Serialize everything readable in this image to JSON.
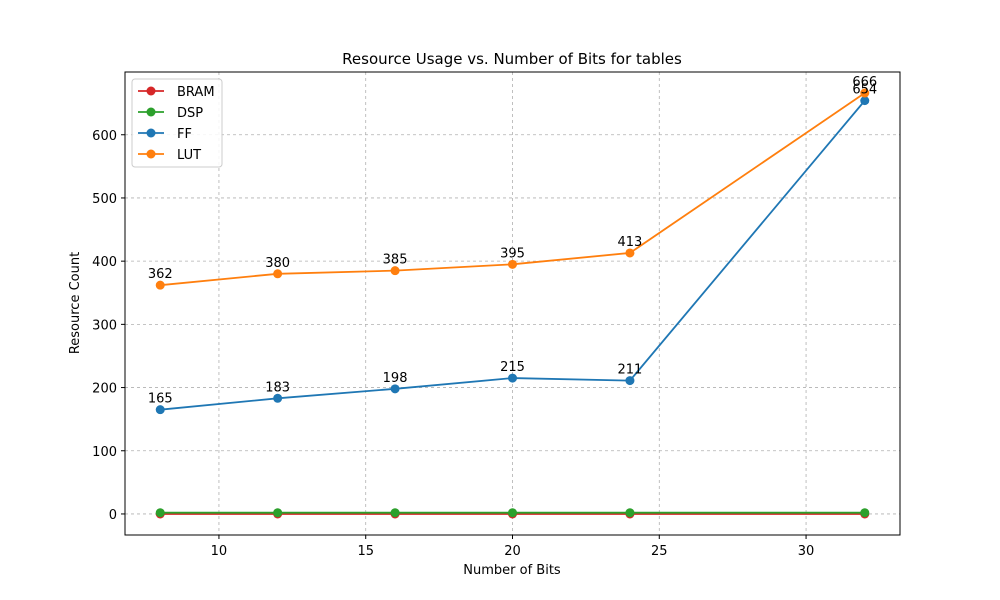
{
  "chart_data": {
    "type": "line",
    "title": "Resource Usage vs. Number of Bits for tables",
    "xlabel": "Number of Bits",
    "ylabel": "Resource Count",
    "x": [
      8,
      12,
      16,
      20,
      24,
      32
    ],
    "xlim": [
      6.8,
      33.2
    ],
    "ylim": [
      -33.3,
      699.3
    ],
    "xticks": [
      10,
      15,
      20,
      25,
      30
    ],
    "yticks": [
      0,
      100,
      200,
      300,
      400,
      500,
      600
    ],
    "grid": true,
    "legend_position": "upper-left",
    "series": [
      {
        "name": "BRAM",
        "color": "#d62728",
        "values": [
          0,
          0,
          0,
          0,
          0,
          0
        ],
        "show_labels": false
      },
      {
        "name": "DSP",
        "color": "#2ca02c",
        "values": [
          2,
          2,
          2,
          2,
          2,
          2
        ],
        "show_labels": false
      },
      {
        "name": "FF",
        "color": "#1f77b4",
        "values": [
          165,
          183,
          198,
          215,
          211,
          654
        ],
        "show_labels": true
      },
      {
        "name": "LUT",
        "color": "#ff7f0e",
        "values": [
          362,
          380,
          385,
          395,
          413,
          666
        ],
        "show_labels": true
      }
    ]
  }
}
